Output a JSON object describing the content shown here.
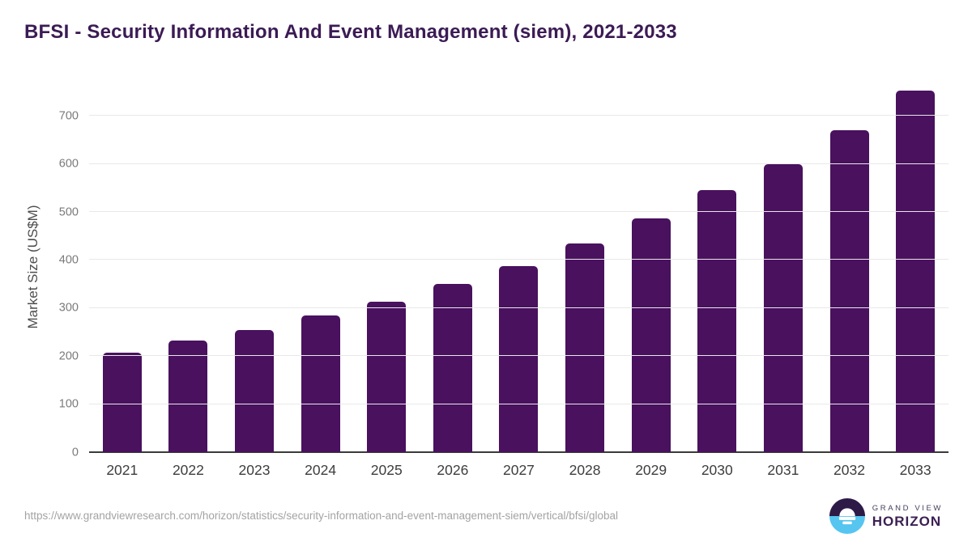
{
  "chart_data": {
    "type": "bar",
    "title": "BFSI - Security Information And Event Management (siem), 2021-2033",
    "categories": [
      "2021",
      "2022",
      "2023",
      "2024",
      "2025",
      "2026",
      "2027",
      "2028",
      "2029",
      "2030",
      "2031",
      "2032",
      "2033"
    ],
    "values": [
      207,
      232,
      255,
      284,
      314,
      350,
      388,
      434,
      486,
      546,
      600,
      671,
      753
    ],
    "xlabel": "",
    "ylabel": "Market Size (US$M)",
    "ylim": [
      0,
      773
    ],
    "yticks": [
      0,
      100,
      200,
      300,
      400,
      500,
      600,
      700
    ],
    "grid": true,
    "legend": "none",
    "bar_color": "#49115e"
  },
  "footer": {
    "source_url": "https://www.grandviewresearch.com/horizon/statistics/security-information-and-event-management-siem/vertical/bfsi/global",
    "logo": {
      "line1": "GRAND VIEW",
      "line2": "HORIZON",
      "icon": "horizon-circle-icon",
      "colors": {
        "top": "#2d1a47",
        "bottom": "#56c5f0"
      }
    }
  },
  "colors": {
    "title": "#3b1b54",
    "bar": "#49115e",
    "gridline": "#e8e8e8",
    "axis_line": "#3a3a3a",
    "y_tick_label": "#7a7a7a",
    "x_tick_label": "#3d3d3d",
    "source_url": "#a3a3a3",
    "background": "#ffffff"
  }
}
